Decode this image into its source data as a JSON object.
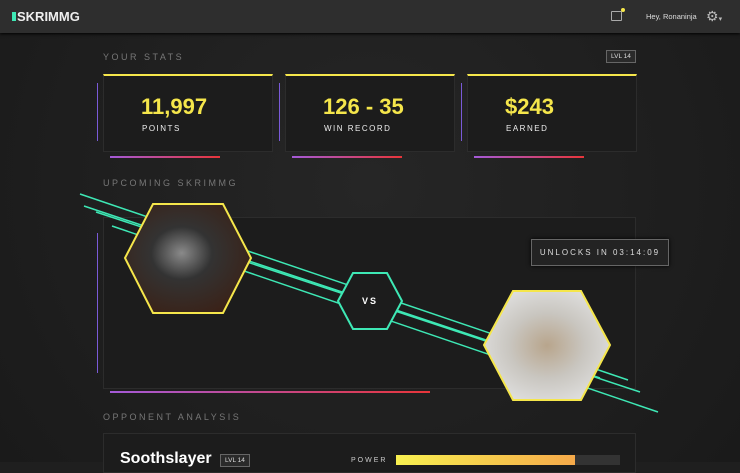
{
  "app": {
    "logo": "SKRIMMG",
    "greeting": "Hey, Ronaninja",
    "icons": [
      "chat-icon",
      "gear-icon"
    ]
  },
  "stats": {
    "title": "YOUR STATS",
    "level": "LVL 14",
    "cards": [
      {
        "value": "11,997",
        "label": "POINTS"
      },
      {
        "value": "126 - 35",
        "label": "WIN RECORD"
      },
      {
        "value": "$243",
        "label": "EARNED"
      }
    ]
  },
  "upcoming": {
    "title": "UPCOMING SKRIMMG",
    "vs": "VS",
    "unlock": "UNLOCKS IN 03:14:09"
  },
  "opponent": {
    "title": "OPPONENT ANALYSIS",
    "name": "Soothslayer",
    "level": "LVL 14",
    "power_label": "POWER",
    "power_percent": 80
  },
  "colors": {
    "accent_yellow": "#f5e64b",
    "accent_teal": "#3ee8b5"
  }
}
